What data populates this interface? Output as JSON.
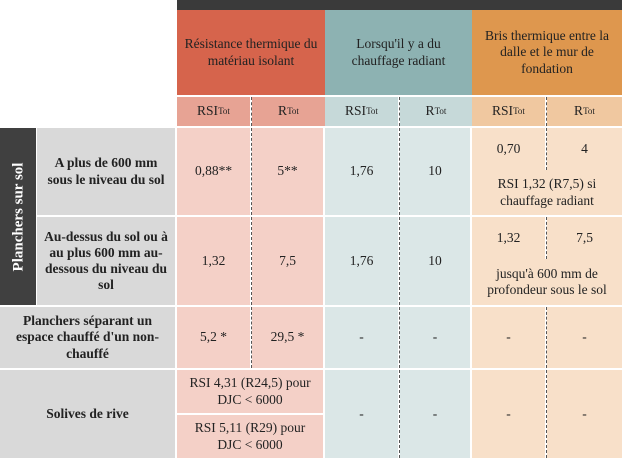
{
  "header": {
    "groups": [
      "Résistance thermique du matériau isolant",
      "Lorsqu'il y a du chauffage radiant",
      "Bris thermique entre la dalle et le mur de fondation"
    ],
    "subheaders": [
      {
        "main": "RSI",
        "sub": "Tot"
      },
      {
        "main": "R",
        "sub": "Tot"
      },
      {
        "main": "RSI",
        "sub": "Tot"
      },
      {
        "main": "R",
        "sub": "Tot"
      },
      {
        "main": "RSI",
        "sub": "Tot"
      },
      {
        "main": "R",
        "sub": "Tot"
      }
    ]
  },
  "side_label": "Planchers sur sol",
  "rows": [
    {
      "label": "A plus de 600 mm sous le niveau du sol",
      "cells": [
        "0,88**",
        "5**",
        "1,76",
        "10",
        "0,70",
        "4"
      ],
      "note": "RSI 1,32 (R7,5) si chauffage radiant"
    },
    {
      "label": "Au-dessus du sol ou à au plus 600 mm au-dessous du niveau du sol",
      "cells": [
        "1,32",
        "7,5",
        "1,76",
        "10",
        "1,32",
        "7,5"
      ],
      "note": "jusqu'à 600 mm de profondeur sous le sol"
    },
    {
      "label": "Planchers séparant un espace chauffé d'un non-chauffé",
      "cells": [
        "5,2 *",
        "29,5 *",
        "-",
        "-",
        "-",
        "-"
      ]
    },
    {
      "label": "Solives de rive",
      "insulation": [
        "RSI 4,31 (R24,5) pour DJC < 6000",
        "RSI 5,11 (R29) pour DJC < 6000"
      ],
      "cells": [
        "-",
        "-",
        "-",
        "-"
      ]
    }
  ]
}
